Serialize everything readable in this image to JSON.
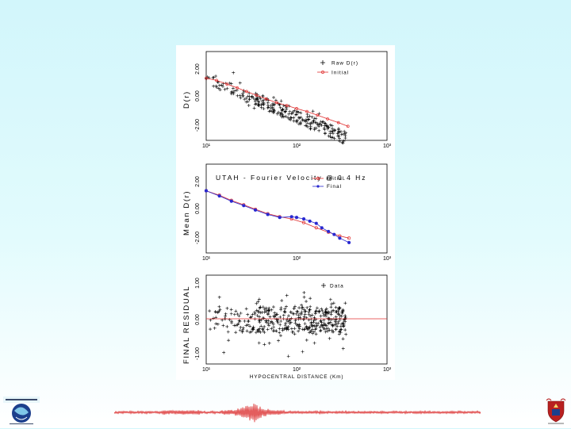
{
  "chart_data": [
    {
      "type": "scatter",
      "panel": "top",
      "ylabel": "D(r)",
      "x_scale": "log",
      "xlim": [
        10,
        1000
      ],
      "ylim": [
        -3,
        3
      ],
      "yticks": [
        "2.00",
        "0.00",
        "-2.00"
      ],
      "xticks": [
        "10¹",
        "10²",
        "10³"
      ],
      "legend": [
        "Raw D(r)",
        "Initial"
      ],
      "series": [
        {
          "name": "Initial",
          "color": "#e03030",
          "x": [
            10,
            13,
            17,
            22,
            28,
            36,
            46,
            60,
            78,
            100,
            130,
            170,
            220,
            290,
            370
          ],
          "y": [
            1.2,
            1.05,
            0.8,
            0.55,
            0.3,
            0.05,
            -0.2,
            -0.45,
            -0.65,
            -0.85,
            -1.05,
            -1.3,
            -1.55,
            -1.8,
            -2.05
          ]
        }
      ]
    },
    {
      "type": "line",
      "panel": "middle",
      "title": "UTAH - Fourier Velocity @ 0.4 Hz",
      "ylabel": "Mean D(r)",
      "x_scale": "log",
      "xlim": [
        10,
        1000
      ],
      "ylim": [
        -3,
        3
      ],
      "yticks": [
        "2.00",
        "0.00",
        "-2.00"
      ],
      "xticks": [
        "10¹",
        "10²",
        "10³"
      ],
      "legend": [
        "Initial",
        "Final"
      ],
      "series": [
        {
          "name": "Initial",
          "color": "#e03030",
          "x": [
            10,
            14,
            19,
            26,
            35,
            48,
            65,
            88,
            120,
            165,
            225,
            300,
            380
          ],
          "y": [
            1.2,
            0.9,
            0.55,
            0.25,
            -0.05,
            -0.35,
            -0.55,
            -0.7,
            -0.95,
            -1.3,
            -1.6,
            -1.85,
            -2.0
          ]
        },
        {
          "name": "Final",
          "color": "#2828d0",
          "x": [
            10,
            14,
            19,
            26,
            35,
            48,
            65,
            88,
            100,
            120,
            140,
            165,
            190,
            225,
            260,
            300,
            380
          ],
          "y": [
            1.2,
            0.85,
            0.5,
            0.2,
            -0.1,
            -0.4,
            -0.6,
            -0.55,
            -0.6,
            -0.7,
            -0.85,
            -1.0,
            -1.3,
            -1.55,
            -1.75,
            -2.0,
            -2.3
          ]
        }
      ]
    },
    {
      "type": "scatter",
      "panel": "bottom",
      "ylabel": "FINAL RESIDUAL",
      "xlabel": "HYPOCENTRAL DISTANCE (Km)",
      "x_scale": "log",
      "xlim": [
        10,
        1000
      ],
      "ylim": [
        -1.2,
        1.2
      ],
      "yticks": [
        "1.00",
        "0.00",
        "-1.00"
      ],
      "xticks": [
        "10¹",
        "10²",
        "10³"
      ],
      "legend": [
        "Data"
      ],
      "reference_line": {
        "y": 0,
        "color": "#e03030"
      }
    }
  ]
}
